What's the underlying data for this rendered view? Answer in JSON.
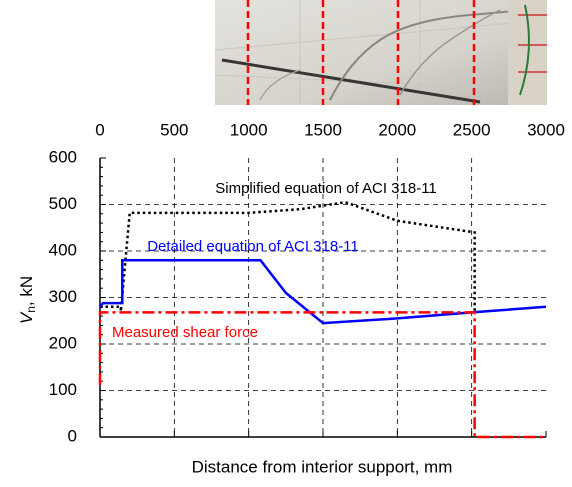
{
  "chart_data": {
    "type": "line",
    "xlabel": "Distance from interior support, mm",
    "ylabel": {
      "symbol": "V",
      "subscript": "n",
      "unit": ", kN"
    },
    "xlim": [
      0,
      3000
    ],
    "xticks": [
      0,
      500,
      1000,
      1500,
      2000,
      2500,
      3000
    ],
    "ylim": [
      0,
      600
    ],
    "yticks": [
      0,
      100,
      200,
      300,
      400,
      500,
      600
    ],
    "grid": true,
    "series": [
      {
        "name": "Simplified equation of ACI 318-11",
        "color": "#000000",
        "style": "dotted",
        "x": [
          0,
          140,
          140,
          200,
          1000,
          1350,
          1650,
          2000,
          2520,
          2520
        ],
        "values": [
          280,
          280,
          270,
          482,
          482,
          490,
          505,
          465,
          440,
          270
        ]
      },
      {
        "name": "Detailed equation of ACI 318-11",
        "color": "#0000ff",
        "style": "solid",
        "x": [
          0,
          20,
          150,
          150,
          1080,
          1250,
          1500,
          2000,
          2500,
          3000
        ],
        "values": [
          280,
          288,
          288,
          380,
          380,
          310,
          245,
          255,
          268,
          280
        ]
      },
      {
        "name": "Measured shear force",
        "color": "#ff0000",
        "style": "dashdot",
        "x": [
          0,
          0,
          2520,
          2520,
          3000
        ],
        "values": [
          112,
          268,
          268,
          0,
          0
        ]
      }
    ]
  }
}
